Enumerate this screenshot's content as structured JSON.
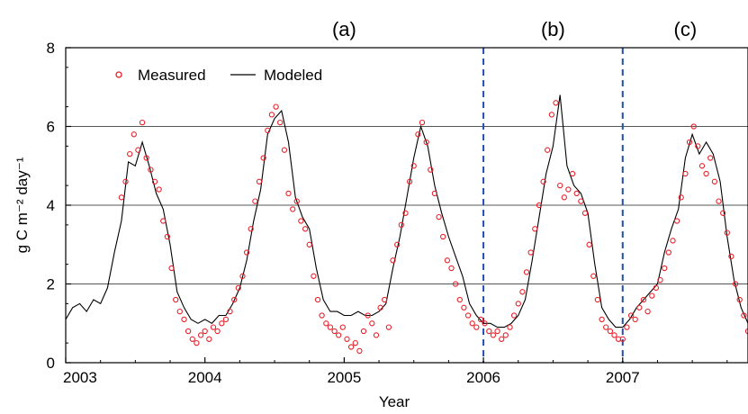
{
  "chart_data": {
    "type": "line",
    "xlabel": "Year",
    "ylabel": "g C m⁻² day⁻¹",
    "xlim": [
      2003,
      2007.9
    ],
    "ylim": [
      0,
      8
    ],
    "x_ticks": [
      "2003",
      "2004",
      "2005",
      "2006",
      "2007"
    ],
    "y_ticks": [
      "0",
      "2",
      "4",
      "6",
      "8"
    ],
    "grid": "horizontal",
    "legend": {
      "position": "top-left",
      "entries": [
        "Measured",
        "Modeled"
      ]
    },
    "colors": {
      "measured": "#e8202a",
      "modeled": "#000000",
      "divider": "#1f4fb4",
      "grid": "#555555"
    },
    "panel_labels": [
      {
        "text": "(a)",
        "x": 2005.0
      },
      {
        "text": "(b)",
        "x": 2006.5
      },
      {
        "text": "(c)",
        "x": 2007.45
      }
    ],
    "dividers": [
      2006.0,
      2007.0
    ],
    "series": [
      {
        "name": "Modeled",
        "style": "line",
        "x": [
          2003.0,
          2003.05,
          2003.1,
          2003.15,
          2003.2,
          2003.25,
          2003.3,
          2003.35,
          2003.4,
          2003.45,
          2003.5,
          2003.55,
          2003.6,
          2003.65,
          2003.7,
          2003.75,
          2003.8,
          2003.85,
          2003.9,
          2003.95,
          2004.0,
          2004.05,
          2004.1,
          2004.15,
          2004.2,
          2004.25,
          2004.3,
          2004.35,
          2004.4,
          2004.45,
          2004.5,
          2004.55,
          2004.6,
          2004.65,
          2004.7,
          2004.75,
          2004.8,
          2004.85,
          2004.9,
          2004.95,
          2005.0,
          2005.05,
          2005.1,
          2005.15,
          2005.2,
          2005.25,
          2005.3,
          2005.35,
          2005.4,
          2005.45,
          2005.5,
          2005.55,
          2005.6,
          2005.65,
          2005.7,
          2005.75,
          2005.8,
          2005.85,
          2005.9,
          2005.95,
          2006.0,
          2006.05,
          2006.1,
          2006.15,
          2006.2,
          2006.25,
          2006.3,
          2006.35,
          2006.4,
          2006.45,
          2006.5,
          2006.55,
          2006.6,
          2006.65,
          2006.7,
          2006.75,
          2006.8,
          2006.85,
          2006.9,
          2006.95,
          2007.0,
          2007.05,
          2007.1,
          2007.15,
          2007.2,
          2007.25,
          2007.3,
          2007.35,
          2007.4,
          2007.45,
          2007.5,
          2007.55,
          2007.6,
          2007.65,
          2007.7,
          2007.75,
          2007.8,
          2007.85,
          2007.9
        ],
        "y": [
          1.1,
          1.4,
          1.5,
          1.3,
          1.6,
          1.5,
          1.9,
          2.8,
          3.6,
          5.1,
          5.0,
          5.6,
          5.0,
          4.3,
          3.9,
          3.0,
          1.8,
          1.4,
          1.1,
          1.0,
          1.1,
          1.0,
          1.2,
          1.2,
          1.5,
          1.9,
          2.6,
          3.6,
          4.4,
          5.8,
          6.2,
          6.4,
          5.6,
          4.2,
          3.7,
          3.4,
          2.4,
          1.6,
          1.3,
          1.3,
          1.2,
          1.2,
          1.3,
          1.2,
          1.2,
          1.3,
          1.5,
          2.4,
          3.2,
          4.2,
          5.2,
          6.0,
          5.5,
          4.5,
          3.8,
          3.2,
          2.7,
          2.2,
          1.5,
          1.2,
          1.0,
          1.0,
          0.9,
          0.9,
          1.0,
          1.2,
          1.6,
          2.6,
          3.7,
          4.8,
          5.5,
          6.8,
          5.0,
          4.5,
          4.3,
          3.8,
          2.5,
          1.4,
          1.1,
          0.9,
          0.9,
          1.1,
          1.4,
          1.6,
          1.8,
          2.0,
          2.8,
          3.4,
          3.9,
          5.2,
          5.8,
          5.3,
          5.6,
          5.3,
          4.6,
          3.2,
          2.1,
          1.4,
          1.0
        ]
      },
      {
        "name": "Measured",
        "style": "markers",
        "x": [
          2003.4,
          2003.43,
          2003.46,
          2003.49,
          2003.52,
          2003.55,
          2003.58,
          2003.61,
          2003.64,
          2003.67,
          2003.7,
          2003.73,
          2003.76,
          2003.79,
          2003.82,
          2003.85,
          2003.88,
          2003.91,
          2003.94,
          2003.97,
          2004.0,
          2004.03,
          2004.06,
          2004.09,
          2004.12,
          2004.15,
          2004.18,
          2004.21,
          2004.24,
          2004.27,
          2004.3,
          2004.33,
          2004.36,
          2004.39,
          2004.42,
          2004.45,
          2004.48,
          2004.51,
          2004.54,
          2004.57,
          2004.6,
          2004.63,
          2004.66,
          2004.69,
          2004.72,
          2004.75,
          2004.78,
          2004.81,
          2004.84,
          2004.87,
          2004.9,
          2004.93,
          2004.96,
          2004.99,
          2005.02,
          2005.05,
          2005.08,
          2005.11,
          2005.14,
          2005.17,
          2005.2,
          2005.23,
          2005.26,
          2005.29,
          2005.32,
          2005.35,
          2005.38,
          2005.41,
          2005.44,
          2005.47,
          2005.5,
          2005.53,
          2005.56,
          2005.59,
          2005.62,
          2005.65,
          2005.68,
          2005.71,
          2005.74,
          2005.77,
          2005.8,
          2005.83,
          2005.86,
          2005.89,
          2005.92,
          2005.95,
          2005.98,
          2006.01,
          2006.04,
          2006.07,
          2006.1,
          2006.13,
          2006.16,
          2006.19,
          2006.22,
          2006.25,
          2006.28,
          2006.31,
          2006.34,
          2006.37,
          2006.4,
          2006.43,
          2006.46,
          2006.49,
          2006.52,
          2006.55,
          2006.58,
          2006.61,
          2006.64,
          2006.67,
          2006.7,
          2006.73,
          2006.76,
          2006.79,
          2006.82,
          2006.85,
          2006.88,
          2006.91,
          2006.94,
          2006.97,
          2007.0,
          2007.03,
          2007.06,
          2007.09,
          2007.12,
          2007.15,
          2007.18,
          2007.21,
          2007.24,
          2007.27,
          2007.3,
          2007.33,
          2007.36,
          2007.39,
          2007.42,
          2007.45,
          2007.48,
          2007.51,
          2007.54,
          2007.57,
          2007.6,
          2007.63,
          2007.66,
          2007.69,
          2007.72,
          2007.75,
          2007.78,
          2007.81,
          2007.84,
          2007.87,
          2007.9
        ],
        "y": [
          4.2,
          4.6,
          5.3,
          5.8,
          5.4,
          6.1,
          5.2,
          4.9,
          4.6,
          4.4,
          3.6,
          3.2,
          2.4,
          1.6,
          1.3,
          1.1,
          0.8,
          0.6,
          0.5,
          0.7,
          0.8,
          0.6,
          0.9,
          0.8,
          1.0,
          1.1,
          1.3,
          1.6,
          1.9,
          2.2,
          2.8,
          3.4,
          4.1,
          4.6,
          5.2,
          5.9,
          6.3,
          6.5,
          6.1,
          5.4,
          4.3,
          3.9,
          4.1,
          3.6,
          3.4,
          3.0,
          2.2,
          1.6,
          1.2,
          1.0,
          0.9,
          0.8,
          0.7,
          0.9,
          0.6,
          0.4,
          0.5,
          0.3,
          0.8,
          1.2,
          1.0,
          0.7,
          1.4,
          1.6,
          0.9,
          2.6,
          3.0,
          3.5,
          3.8,
          4.6,
          5.0,
          5.8,
          6.1,
          5.6,
          4.9,
          4.3,
          3.7,
          3.2,
          2.6,
          2.4,
          2.0,
          1.6,
          1.4,
          1.2,
          1.0,
          0.9,
          1.1,
          1.0,
          0.8,
          0.7,
          0.8,
          0.6,
          0.7,
          0.9,
          1.2,
          1.5,
          1.8,
          2.3,
          2.8,
          3.4,
          4.0,
          4.6,
          5.4,
          6.3,
          6.6,
          4.5,
          4.2,
          4.4,
          4.8,
          4.3,
          4.1,
          3.8,
          3.0,
          2.2,
          1.6,
          1.1,
          0.9,
          0.8,
          0.7,
          0.6,
          0.6,
          0.9,
          1.2,
          1.1,
          1.4,
          1.6,
          1.3,
          1.7,
          1.9,
          2.1,
          2.4,
          2.8,
          3.1,
          3.6,
          4.2,
          4.8,
          5.6,
          6.0,
          5.5,
          5.0,
          4.8,
          5.2,
          4.6,
          4.1,
          3.8,
          3.3,
          2.7,
          2.0,
          1.6,
          1.2,
          0.8
        ]
      }
    ]
  }
}
